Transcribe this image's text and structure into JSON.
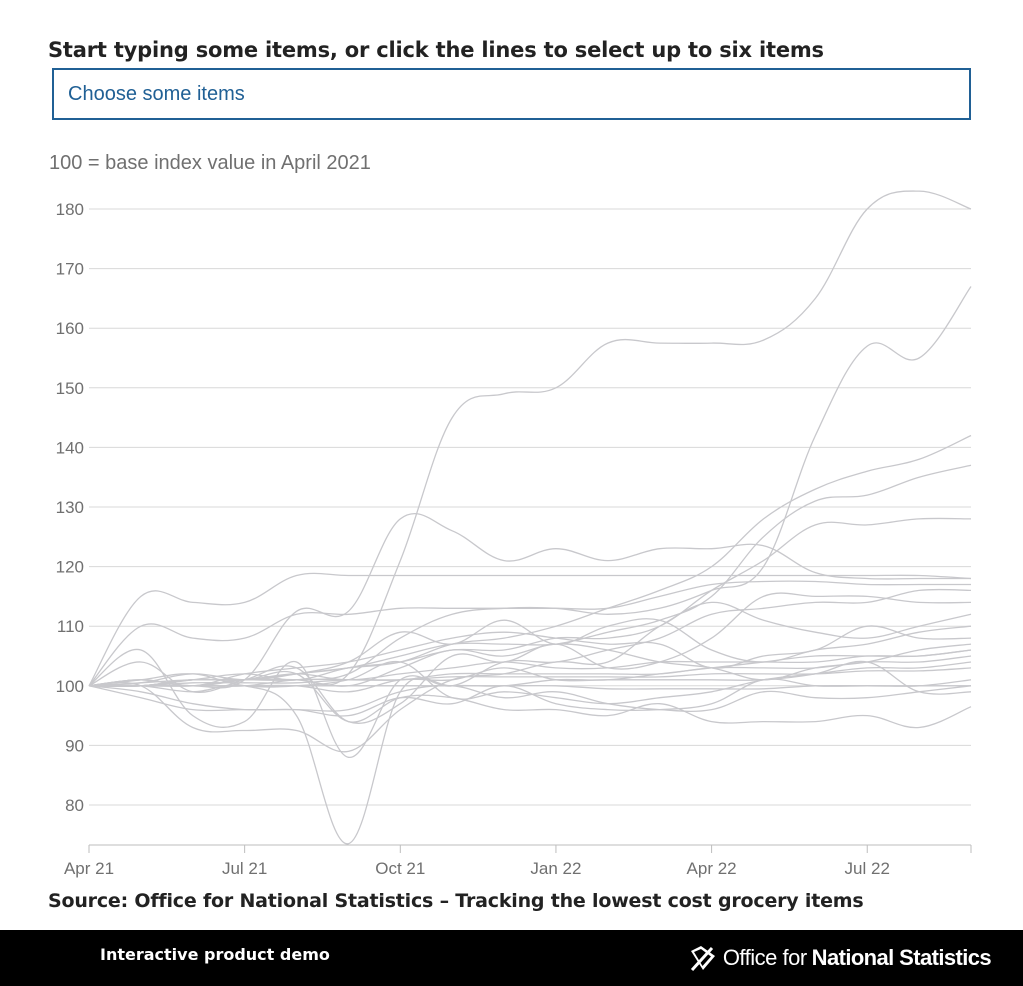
{
  "prompt": "Start typing some items, or click the lines to select up to six items",
  "search": {
    "placeholder": "Choose some items"
  },
  "footer": {
    "label": "Interactive product demo",
    "org_regular": "Office for",
    "org_bold": "National Statistics"
  },
  "chart_data": {
    "type": "line",
    "title": "",
    "subtitle": "100 = base index value in April 2021",
    "xlabel": "",
    "ylabel": "",
    "source": "Source: Office for National Statistics – Tracking the lowest cost grocery items",
    "x": [
      "2021-04",
      "2021-05",
      "2021-06",
      "2021-07",
      "2021-08",
      "2021-09",
      "2021-10",
      "2021-11",
      "2021-12",
      "2022-01",
      "2022-02",
      "2022-03",
      "2022-04",
      "2022-05",
      "2022-06",
      "2022-07",
      "2022-08",
      "2022-09"
    ],
    "x_ticks": [
      {
        "x": "2021-04",
        "label": "Apr 21"
      },
      {
        "x": "2021-07",
        "label": "Jul 21"
      },
      {
        "x": "2021-10",
        "label": "Oct 21"
      },
      {
        "x": "2022-01",
        "label": "Jan 22"
      },
      {
        "x": "2022-04",
        "label": "Apr 22"
      },
      {
        "x": "2022-07",
        "label": "Jul 22"
      }
    ],
    "ylim": [
      73,
      185
    ],
    "y_ticks": [
      80,
      90,
      100,
      110,
      120,
      130,
      140,
      150,
      160,
      170,
      180
    ],
    "grid": true,
    "legend": "none",
    "line_color": "#c8c8cc",
    "grid_color": "#d8d8d8",
    "series": [
      {
        "values": [
          100,
          100.5,
          101,
          101,
          101,
          102,
          121,
          145,
          149,
          150,
          157.5,
          157.5,
          157.5,
          158,
          165,
          180,
          183,
          180
        ]
      },
      {
        "values": [
          100,
          100,
          100,
          101,
          101,
          102,
          108,
          112,
          113,
          113,
          112,
          113,
          116,
          120,
          142,
          157,
          155,
          167
        ]
      },
      {
        "values": [
          100,
          100,
          101,
          101,
          102,
          103,
          104,
          107,
          108,
          110,
          113,
          116,
          120,
          128,
          133,
          136,
          138,
          142
        ]
      },
      {
        "values": [
          100,
          101,
          100,
          101,
          102,
          103,
          105,
          107,
          107,
          107,
          109,
          111,
          115,
          125,
          131,
          132,
          135,
          137
        ]
      },
      {
        "values": [
          100,
          100,
          101,
          102,
          101,
          103,
          104,
          106,
          106,
          108,
          108,
          110,
          116,
          121,
          127,
          127,
          128,
          128
        ]
      },
      {
        "values": [
          100,
          115,
          114,
          114,
          118.5,
          118.5,
          118.5,
          118.5,
          118.5,
          118.5,
          118.5,
          118.5,
          118.5,
          118.5,
          118.5,
          118.5,
          118.5,
          118
        ]
      },
      {
        "values": [
          100,
          101,
          100,
          101,
          112.5,
          112.5,
          128,
          126,
          121,
          123,
          121,
          123,
          123,
          123.5,
          119,
          118,
          118,
          118
        ]
      },
      {
        "values": [
          100,
          110,
          108,
          108,
          112,
          112,
          113,
          113,
          113,
          113,
          113,
          115,
          117,
          117.5,
          117.5,
          117,
          117,
          117
        ]
      },
      {
        "values": [
          100,
          106,
          95,
          94,
          104,
          88,
          101,
          100,
          104,
          104,
          106,
          108,
          112,
          113,
          114,
          114,
          116,
          116
        ]
      },
      {
        "values": [
          100,
          104,
          99,
          101,
          103,
          94,
          97,
          105,
          104,
          107,
          103,
          104,
          108,
          115,
          115,
          115,
          114,
          114
        ]
      },
      {
        "values": [
          100,
          100,
          93,
          92.5,
          92.5,
          89,
          96,
          101,
          102,
          104,
          104,
          110,
          114,
          111,
          109,
          108,
          110,
          112
        ]
      },
      {
        "values": [
          100,
          100.5,
          102,
          101,
          102,
          104,
          109,
          107,
          111,
          107,
          110,
          111,
          106,
          104,
          106,
          107,
          109,
          110
        ]
      },
      {
        "values": [
          100,
          101,
          100,
          102,
          103,
          104,
          106,
          108,
          109,
          108,
          107,
          107,
          103,
          105,
          106,
          110,
          108,
          108
        ]
      },
      {
        "values": [
          100,
          100,
          101,
          101,
          101,
          100,
          103,
          106,
          105,
          107,
          106,
          104,
          103,
          101,
          103,
          104,
          106,
          107
        ]
      },
      {
        "values": [
          100,
          100,
          101,
          101,
          102,
          101,
          102,
          103,
          104,
          103,
          103,
          104,
          104,
          104,
          104,
          105,
          105,
          106
        ]
      },
      {
        "values": [
          100,
          100,
          100,
          100,
          101,
          101,
          101,
          102,
          102,
          102,
          102,
          102,
          103,
          103,
          103,
          104,
          104,
          105
        ]
      },
      {
        "values": [
          100,
          101,
          102,
          100,
          100,
          101,
          104,
          98,
          99,
          98,
          97,
          98,
          99,
          101,
          102,
          103,
          103,
          104
        ]
      },
      {
        "values": [
          100,
          100,
          100.5,
          100.5,
          100.5,
          101,
          101,
          101.5,
          101.5,
          101.5,
          101.5,
          101.5,
          102,
          102,
          102,
          102.5,
          102.5,
          103
        ]
      },
      {
        "values": [
          100,
          99,
          97,
          96,
          96,
          95,
          98,
          97,
          100,
          97,
          96,
          96,
          97,
          101,
          100,
          100,
          100,
          101
        ]
      },
      {
        "values": [
          100,
          100,
          100,
          100,
          100,
          100,
          100,
          100,
          100,
          100,
          99.5,
          99.5,
          99.5,
          99.5,
          100,
          100,
          100,
          100
        ]
      },
      {
        "values": [
          100,
          98,
          96,
          96,
          96,
          96,
          99,
          100,
          98,
          99,
          97,
          96,
          96,
          99,
          98,
          98,
          99,
          100
        ]
      },
      {
        "values": [
          100,
          100,
          100,
          100,
          100,
          99,
          101,
          101,
          103,
          101,
          101,
          101,
          101,
          101,
          102,
          104,
          99,
          99
        ]
      },
      {
        "values": [
          100,
          100,
          101,
          101,
          102,
          94,
          98,
          98,
          96,
          96,
          95,
          97,
          94,
          94,
          94,
          95,
          93,
          96.5
        ]
      },
      {
        "values": [
          100,
          100,
          99,
          100,
          95,
          73.5,
          99,
          100,
          100,
          101,
          101,
          102,
          103,
          104,
          105,
          105,
          105,
          106
        ]
      }
    ]
  }
}
